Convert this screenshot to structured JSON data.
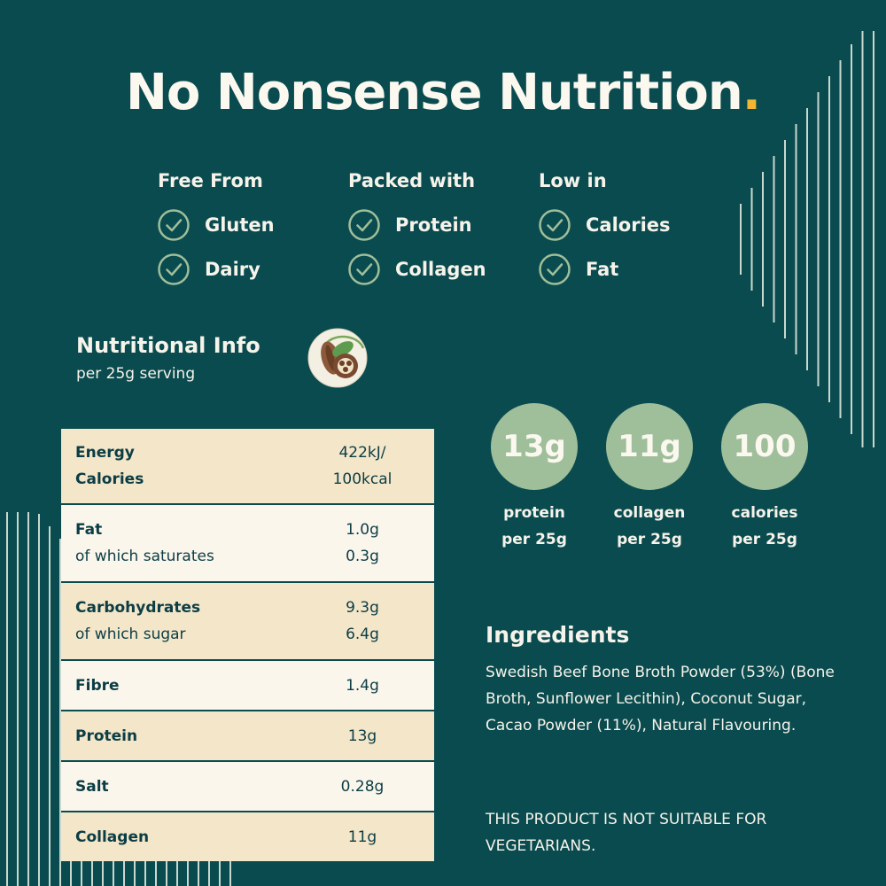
{
  "header": {
    "title": "No Nonsense Nutrition",
    "dot": ".",
    "accent_color": "#f2b632"
  },
  "claims": [
    {
      "heading": "Free From",
      "items": [
        "Gluten",
        "Dairy"
      ]
    },
    {
      "heading": "Packed with",
      "items": [
        "Protein",
        "Collagen"
      ]
    },
    {
      "heading": "Low in",
      "items": [
        "Calories",
        "Fat"
      ]
    }
  ],
  "nutrition": {
    "title": "Nutritional Info",
    "subtitle": "per 25g serving",
    "icon": "cacao-icon",
    "rows": {
      "energy": {
        "label1": "Energy",
        "label2": "Calories",
        "value1": "422kJ/",
        "value2": "100kcal"
      },
      "fat": {
        "label1": "Fat",
        "label2": "of which saturates",
        "value1": "1.0g",
        "value2": "0.3g"
      },
      "carbs": {
        "label1": "Carbohydrates",
        "label2": "of which sugar",
        "value1": "9.3g",
        "value2": "6.4g"
      },
      "fibre": {
        "label": "Fibre",
        "value": "1.4g"
      },
      "protein": {
        "label": "Protein",
        "value": "13g"
      },
      "salt": {
        "label": "Salt",
        "value": "0.28g"
      },
      "collagen": {
        "label": "Collagen",
        "value": "11g"
      }
    }
  },
  "badges": [
    {
      "value": "13g",
      "label1": "protein",
      "label2": "per 25g"
    },
    {
      "value": "11g",
      "label1": "collagen",
      "label2": "per 25g"
    },
    {
      "value": "100",
      "label1": "calories",
      "label2": "per 25g"
    }
  ],
  "ingredients": {
    "title": "Ingredients",
    "text": "Swedish Beef Bone Broth Powder (53%) (Bone Broth, Sunflower Lecithin), Coconut Sugar, Cacao Powder (11%), Natural Flavouring.",
    "warning": "THIS PRODUCT IS NOT SUITABLE FOR VEGETARIANS."
  },
  "colors": {
    "background": "#0a4b4f",
    "badge": "#9fbe9a",
    "row_tan": "#f3e6c9",
    "row_cream": "#faf6ec"
  }
}
